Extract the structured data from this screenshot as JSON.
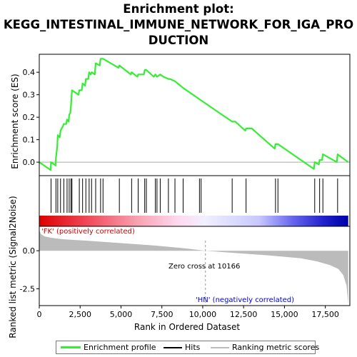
{
  "title_lines": [
    "Enrichment plot:",
    "KEGG_INTESTINAL_IMMUNE_NETWORK_FOR_IGA_PRO",
    "DUCTION"
  ],
  "colors": {
    "enrichment_line": "#33ee33",
    "hits": "#000000",
    "metric_fill": "#bbbbbb",
    "zero_line": "#aaaaaa",
    "positive_label": "#cc0000",
    "negative_label": "#0000cc"
  },
  "chart_data": {
    "type": "line",
    "xlabel": "Rank in Ordered Dataset",
    "x_ticks": [
      0,
      2500,
      5000,
      7500,
      10000,
      12500,
      15000,
      17500
    ],
    "x_tick_labels": [
      "0",
      "2,500",
      "5,000",
      "7,500",
      "10,000",
      "12,500",
      "15,000",
      "17,500"
    ],
    "xlim": [
      0,
      19000
    ],
    "es_panel": {
      "ylabel": "Enrichment score (ES)",
      "ylim": [
        -0.06,
        0.48
      ],
      "y_ticks": [
        0.0,
        0.1,
        0.2,
        0.3,
        0.4
      ],
      "y_tick_labels": [
        "0.0",
        "0.1",
        "0.2",
        "0.3",
        "0.4"
      ],
      "series": [
        {
          "name": "Enrichment profile",
          "x": [
            0,
            700,
            720,
            1000,
            1020,
            1100,
            1130,
            1250,
            1300,
            1450,
            1500,
            1650,
            1700,
            1800,
            1830,
            1900,
            1940,
            2000,
            2400,
            2450,
            2600,
            2650,
            2800,
            2850,
            3000,
            3050,
            3150,
            3200,
            3400,
            3450,
            3700,
            3750,
            3900,
            4850,
            4900,
            5600,
            5650,
            6000,
            6050,
            6400,
            6450,
            6550,
            7000,
            7100,
            7200,
            7400,
            7600,
            7900,
            8000,
            8300,
            8800,
            9800,
            10000,
            11000,
            11800,
            12000,
            12600,
            12650,
            13000,
            14400,
            14450,
            14600,
            16800,
            16850,
            17100,
            17150,
            17300,
            17350,
            18200,
            18250,
            18900
          ],
          "y": [
            0.0,
            -0.035,
            0.0,
            -0.015,
            0.02,
            0.07,
            0.12,
            0.11,
            0.14,
            0.16,
            0.17,
            0.17,
            0.19,
            0.18,
            0.21,
            0.22,
            0.25,
            0.32,
            0.3,
            0.32,
            0.32,
            0.35,
            0.34,
            0.37,
            0.37,
            0.4,
            0.39,
            0.4,
            0.39,
            0.44,
            0.43,
            0.46,
            0.46,
            0.42,
            0.43,
            0.39,
            0.4,
            0.38,
            0.39,
            0.39,
            0.41,
            0.41,
            0.38,
            0.39,
            0.38,
            0.39,
            0.38,
            0.37,
            0.37,
            0.36,
            0.33,
            0.28,
            0.27,
            0.22,
            0.18,
            0.18,
            0.14,
            0.15,
            0.15,
            0.06,
            0.08,
            0.08,
            -0.03,
            0.0,
            -0.01,
            0.01,
            0.01,
            0.035,
            0.0,
            0.035,
            0.0
          ]
        }
      ]
    },
    "hits_panel": {
      "hit_ranks": [
        720,
        1020,
        1130,
        1300,
        1500,
        1700,
        1830,
        1940,
        2000,
        2450,
        2650,
        2850,
        3050,
        3200,
        3450,
        3750,
        3900,
        4900,
        5650,
        6050,
        6450,
        6550,
        7100,
        7200,
        7400,
        7900,
        8300,
        8800,
        9800,
        9900,
        11800,
        12650,
        14450,
        14600,
        16850,
        17150,
        17350,
        18250
      ]
    },
    "heatmap_bar": {
      "stops": [
        {
          "x": 0,
          "color": "#dd0000"
        },
        {
          "x": 3000,
          "color": "#f04a5a"
        },
        {
          "x": 6000,
          "color": "#f8a0b0"
        },
        {
          "x": 8500,
          "color": "#ffd8ee"
        },
        {
          "x": 10166,
          "color": "#f0f0ff"
        },
        {
          "x": 13500,
          "color": "#c8c8ff"
        },
        {
          "x": 15500,
          "color": "#6a6aee"
        },
        {
          "x": 17500,
          "color": "#2020cc"
        },
        {
          "x": 19000,
          "color": "#0000aa"
        }
      ]
    },
    "metric_panel": {
      "ylabel": "Ranked list metric (Signal2Noise)",
      "ylim": [
        -3.6,
        1.6
      ],
      "y_ticks": [
        0.0,
        -2.5
      ],
      "y_tick_labels": [
        "0.0",
        "-2.5"
      ],
      "x": [
        0,
        100,
        300,
        700,
        1500,
        3000,
        5000,
        7000,
        9000,
        10166,
        12000,
        14000,
        16000,
        17000,
        17800,
        18300,
        18600,
        18800,
        18900
      ],
      "values": [
        1.35,
        1.1,
        0.95,
        0.85,
        0.75,
        0.65,
        0.5,
        0.35,
        0.15,
        0.0,
        -0.15,
        -0.3,
        -0.5,
        -0.7,
        -0.95,
        -1.2,
        -1.6,
        -2.3,
        -3.5
      ],
      "positive_label": "'FK' (positively correlated)",
      "negative_label": "'HN' (negatively correlated)",
      "zero_cross_label": "Zero cross at 10166",
      "zero_cross": 10166
    },
    "legend": {
      "items": [
        "Enrichment profile",
        "Hits",
        "Ranking metric scores"
      ],
      "placement": "bottom"
    }
  }
}
